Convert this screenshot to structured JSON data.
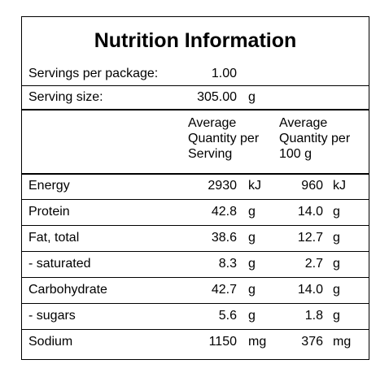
{
  "title": "Nutrition Information",
  "servings": {
    "label": "Servings per package:",
    "value": "1.00"
  },
  "serving_size": {
    "label": "Serving size:",
    "value": "305.00",
    "unit": "g"
  },
  "headers": {
    "per_serving": [
      "Average",
      "Quantity per",
      "Serving"
    ],
    "per_100g": [
      "Average",
      "Quantity per",
      "100 g"
    ]
  },
  "rows": [
    {
      "name": "Energy",
      "serving": "2930",
      "serving_unit": "kJ",
      "per100": "960",
      "per100_unit": "kJ"
    },
    {
      "name": "Protein",
      "serving": "42.8",
      "serving_unit": "g",
      "per100": "14.0",
      "per100_unit": "g"
    },
    {
      "name": "Fat, total",
      "serving": "38.6",
      "serving_unit": "g",
      "per100": "12.7",
      "per100_unit": "g"
    },
    {
      "name": "- saturated",
      "serving": "8.3",
      "serving_unit": "g",
      "per100": "2.7",
      "per100_unit": "g"
    },
    {
      "name": "Carbohydrate",
      "serving": "42.7",
      "serving_unit": "g",
      "per100": "14.0",
      "per100_unit": "g"
    },
    {
      "name": "- sugars",
      "serving": "5.6",
      "serving_unit": "g",
      "per100": "1.8",
      "per100_unit": "g"
    },
    {
      "name": "Sodium",
      "serving": "1150",
      "serving_unit": "mg",
      "per100": "376",
      "per100_unit": "mg"
    }
  ]
}
